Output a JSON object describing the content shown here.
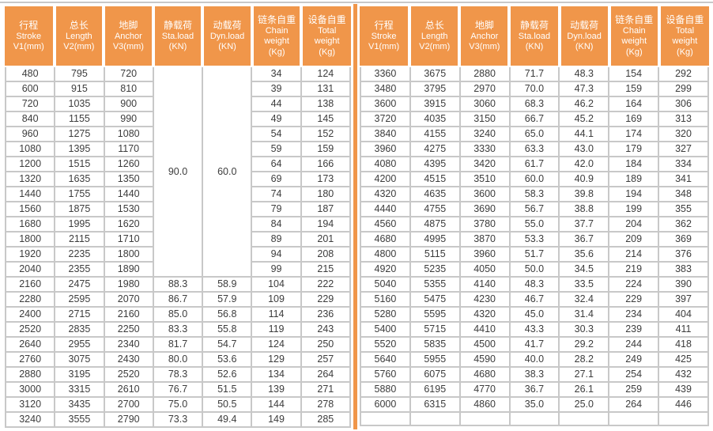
{
  "colors": {
    "header_bg": "#F0964A",
    "divider": "#F0964A",
    "grid_border": "#C8C8C8",
    "cell_text": "#3C3C3C",
    "header_text": "#FFFFFF"
  },
  "columns": [
    {
      "id": "stroke",
      "lines": [
        "行程",
        "Stroke",
        "V1(mm)"
      ]
    },
    {
      "id": "length",
      "lines": [
        "总长",
        "Length",
        "V2(mm)"
      ]
    },
    {
      "id": "anchor",
      "lines": [
        "地脚",
        "Anchor",
        "V3(mm)"
      ]
    },
    {
      "id": "sta-load",
      "lines": [
        "静载荷",
        "Sta.load",
        "(KN)"
      ]
    },
    {
      "id": "dyn-load",
      "lines": [
        "动载荷",
        "Dyn.load",
        "(KN)"
      ]
    },
    {
      "id": "chain-weight",
      "lines": [
        "链条自重",
        "Chain",
        "weight",
        "(Kg)"
      ]
    },
    {
      "id": "total-weight",
      "lines": [
        "设备自重",
        "Total",
        "weight",
        "(Kg)"
      ]
    }
  ],
  "left_table": {
    "merged_cells": [
      {
        "column": 3,
        "start_row": 0,
        "row_span": 14,
        "value": "90.0"
      },
      {
        "column": 4,
        "start_row": 0,
        "row_span": 14,
        "value": "60.0"
      }
    ],
    "rows": [
      [
        "480",
        "795",
        "720",
        "90.0",
        "60.0",
        "34",
        "124"
      ],
      [
        "600",
        "915",
        "810",
        null,
        null,
        "39",
        "131"
      ],
      [
        "720",
        "1035",
        "900",
        null,
        null,
        "44",
        "138"
      ],
      [
        "840",
        "1155",
        "990",
        null,
        null,
        "49",
        "145"
      ],
      [
        "960",
        "1275",
        "1080",
        null,
        null,
        "54",
        "152"
      ],
      [
        "1080",
        "1395",
        "1170",
        null,
        null,
        "59",
        "159"
      ],
      [
        "1200",
        "1515",
        "1260",
        null,
        null,
        "64",
        "166"
      ],
      [
        "1320",
        "1635",
        "1350",
        null,
        null,
        "69",
        "173"
      ],
      [
        "1440",
        "1755",
        "1440",
        null,
        null,
        "74",
        "180"
      ],
      [
        "1560",
        "1875",
        "1530",
        null,
        null,
        "79",
        "187"
      ],
      [
        "1680",
        "1995",
        "1620",
        null,
        null,
        "84",
        "194"
      ],
      [
        "1800",
        "2115",
        "1710",
        null,
        null,
        "89",
        "201"
      ],
      [
        "1920",
        "2235",
        "1800",
        null,
        null,
        "94",
        "208"
      ],
      [
        "2040",
        "2355",
        "1890",
        null,
        null,
        "99",
        "215"
      ],
      [
        "2160",
        "2475",
        "1980",
        "88.3",
        "58.9",
        "104",
        "222"
      ],
      [
        "2280",
        "2595",
        "2070",
        "86.7",
        "57.9",
        "109",
        "229"
      ],
      [
        "2400",
        "2715",
        "2160",
        "85.0",
        "56.8",
        "114",
        "236"
      ],
      [
        "2520",
        "2835",
        "2250",
        "83.3",
        "55.8",
        "119",
        "243"
      ],
      [
        "2640",
        "2955",
        "2340",
        "81.7",
        "54.7",
        "124",
        "250"
      ],
      [
        "2760",
        "3075",
        "2430",
        "80.0",
        "53.6",
        "129",
        "257"
      ],
      [
        "2880",
        "3195",
        "2520",
        "78.3",
        "52.6",
        "134",
        "264"
      ],
      [
        "3000",
        "3315",
        "2610",
        "76.7",
        "51.5",
        "139",
        "271"
      ],
      [
        "3120",
        "3435",
        "2700",
        "75.0",
        "50.5",
        "144",
        "278"
      ],
      [
        "3240",
        "3555",
        "2790",
        "73.3",
        "49.4",
        "149",
        "285"
      ]
    ]
  },
  "right_table": {
    "merged_cells": [],
    "rows": [
      [
        "3360",
        "3675",
        "2880",
        "71.7",
        "48.3",
        "154",
        "292"
      ],
      [
        "3480",
        "3795",
        "2970",
        "70.0",
        "47.3",
        "159",
        "299"
      ],
      [
        "3600",
        "3915",
        "3060",
        "68.3",
        "46.2",
        "164",
        "306"
      ],
      [
        "3720",
        "4035",
        "3150",
        "66.7",
        "45.2",
        "169",
        "313"
      ],
      [
        "3840",
        "4155",
        "3240",
        "65.0",
        "44.1",
        "174",
        "320"
      ],
      [
        "3960",
        "4275",
        "3330",
        "63.3",
        "43.0",
        "179",
        "327"
      ],
      [
        "4080",
        "4395",
        "3420",
        "61.7",
        "42.0",
        "184",
        "334"
      ],
      [
        "4200",
        "4515",
        "3510",
        "60.0",
        "40.9",
        "189",
        "341"
      ],
      [
        "4320",
        "4635",
        "3600",
        "58.3",
        "39.8",
        "194",
        "348"
      ],
      [
        "4440",
        "4755",
        "3690",
        "56.7",
        "38.8",
        "199",
        "355"
      ],
      [
        "4560",
        "4875",
        "3780",
        "55.0",
        "37.7",
        "204",
        "362"
      ],
      [
        "4680",
        "4995",
        "3870",
        "53.3",
        "36.7",
        "209",
        "369"
      ],
      [
        "4800",
        "5115",
        "3960",
        "51.7",
        "35.6",
        "214",
        "376"
      ],
      [
        "4920",
        "5235",
        "4050",
        "50.0",
        "34.5",
        "219",
        "383"
      ],
      [
        "5040",
        "5355",
        "4140",
        "48.3",
        "33.5",
        "224",
        "390"
      ],
      [
        "5160",
        "5475",
        "4230",
        "46.7",
        "32.4",
        "229",
        "397"
      ],
      [
        "5280",
        "5595",
        "4320",
        "45.0",
        "31.4",
        "234",
        "404"
      ],
      [
        "5400",
        "5715",
        "4410",
        "43.3",
        "30.3",
        "239",
        "411"
      ],
      [
        "5520",
        "5835",
        "4500",
        "41.7",
        "29.2",
        "244",
        "418"
      ],
      [
        "5640",
        "5955",
        "4590",
        "40.0",
        "28.2",
        "249",
        "425"
      ],
      [
        "5760",
        "6075",
        "4680",
        "38.3",
        "27.1",
        "254",
        "432"
      ],
      [
        "5880",
        "6195",
        "4770",
        "36.7",
        "26.1",
        "259",
        "439"
      ],
      [
        "6000",
        "6315",
        "4860",
        "35.0",
        "25.0",
        "264",
        "446"
      ],
      [
        "",
        "",
        "",
        "",
        "",
        "",
        ""
      ]
    ]
  }
}
